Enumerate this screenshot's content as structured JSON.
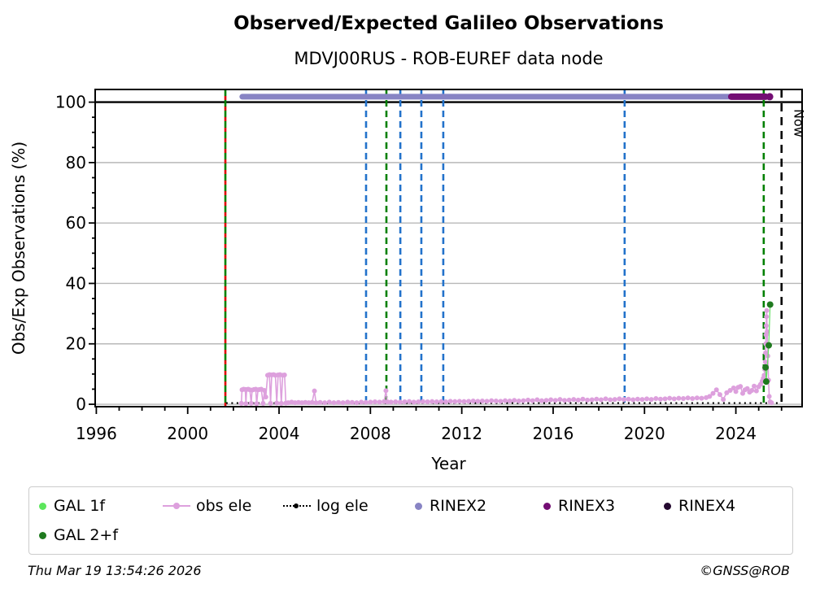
{
  "footer": {
    "timestamp": "Thu Mar 19 13:54:26 2026",
    "copyright": "©GNSS@ROB"
  },
  "chart_data": {
    "type": "line",
    "title": "Observed/Expected Galileo Observations",
    "subtitle": "MDVJ00RUS - ROB-EUREF data node",
    "xlabel": "Year",
    "ylabel": "Obs/Exp Observations (%)",
    "xlim": [
      1995.95,
      2026.9
    ],
    "ylim": [
      -0.8,
      104.2
    ],
    "xticks": {
      "major": [
        1996,
        2000,
        2004,
        2008,
        2012,
        2016,
        2020,
        2024
      ],
      "minor_step": 1
    },
    "yticks": {
      "major": [
        0,
        20,
        40,
        60,
        80,
        100
      ],
      "minor_step": 5
    },
    "grid": {
      "gray_levels": [
        0,
        20,
        40,
        60,
        80
      ],
      "black_levels": [
        100
      ],
      "gray_color": "#b8b8b8"
    },
    "now_line": {
      "year": 2026.0,
      "label": "Now",
      "color": "#000000"
    },
    "event_lines": [
      {
        "year": 2001.65,
        "color": "#008000",
        "overlay_color": "#dd0000"
      },
      {
        "year": 2007.81,
        "color": "#2272cb"
      },
      {
        "year": 2008.7,
        "color": "#008000"
      },
      {
        "year": 2009.31,
        "color": "#2272cb"
      },
      {
        "year": 2010.23,
        "color": "#2272cb"
      },
      {
        "year": 2011.19,
        "color": "#2272cb"
      },
      {
        "year": 2019.13,
        "color": "#2272cb"
      },
      {
        "year": 2025.22,
        "color": "#008000"
      }
    ],
    "rinex_bar_y": 101.8,
    "rinex_bars": [
      {
        "name": "RINEX2",
        "color": "#8884c4",
        "from": 2002.39,
        "to": 2023.8,
        "width": 7
      },
      {
        "name": "RINEX3",
        "color": "#730d73",
        "from": 2023.8,
        "to": 2025.3,
        "width": 8,
        "dot": 2025.48
      }
    ],
    "log_ele": {
      "name": "log ele",
      "color": "#000000",
      "y": 0.4,
      "from": 2001.68,
      "to": 2025.97
    },
    "obs_ele": {
      "name": "obs ele",
      "color": "#dda0dd",
      "points": [
        [
          2002.35,
          0.3
        ],
        [
          2002.38,
          4.8
        ],
        [
          2002.45,
          5.0
        ],
        [
          2002.52,
          4.9
        ],
        [
          2002.55,
          0.2
        ],
        [
          2002.58,
          4.9
        ],
        [
          2002.65,
          5.0
        ],
        [
          2002.72,
          4.8
        ],
        [
          2002.78,
          0.3
        ],
        [
          2002.82,
          4.7
        ],
        [
          2002.9,
          4.9
        ],
        [
          2002.98,
          5.0
        ],
        [
          2003.02,
          0.2
        ],
        [
          2003.08,
          4.8
        ],
        [
          2003.15,
          4.9
        ],
        [
          2003.22,
          5.0
        ],
        [
          2003.3,
          0.3
        ],
        [
          2003.36,
          4.6
        ],
        [
          2003.42,
          2.4
        ],
        [
          2003.5,
          9.6
        ],
        [
          2003.58,
          9.8
        ],
        [
          2003.63,
          0.3
        ],
        [
          2003.68,
          9.7
        ],
        [
          2003.76,
          9.8
        ],
        [
          2003.84,
          9.6
        ],
        [
          2003.9,
          0.4
        ],
        [
          2003.96,
          9.7
        ],
        [
          2004.04,
          9.8
        ],
        [
          2004.1,
          0.3
        ],
        [
          2004.16,
          9.6
        ],
        [
          2004.24,
          9.7
        ],
        [
          2004.3,
          0.4
        ],
        [
          2004.4,
          0.5
        ],
        [
          2004.55,
          0.7
        ],
        [
          2004.7,
          0.5
        ],
        [
          2004.85,
          0.6
        ],
        [
          2005.0,
          0.5
        ],
        [
          2005.15,
          0.6
        ],
        [
          2005.3,
          0.5
        ],
        [
          2005.45,
          0.6
        ],
        [
          2005.55,
          4.4
        ],
        [
          2005.62,
          0.5
        ],
        [
          2005.8,
          0.6
        ],
        [
          2006.0,
          0.5
        ],
        [
          2006.2,
          0.7
        ],
        [
          2006.4,
          0.5
        ],
        [
          2006.6,
          0.6
        ],
        [
          2006.8,
          0.5
        ],
        [
          2007.0,
          0.7
        ],
        [
          2007.2,
          0.6
        ],
        [
          2007.4,
          0.5
        ],
        [
          2007.6,
          0.7
        ],
        [
          2007.8,
          0.6
        ],
        [
          2008.0,
          0.7
        ],
        [
          2008.2,
          0.8
        ],
        [
          2008.4,
          0.7
        ],
        [
          2008.6,
          0.9
        ],
        [
          2008.68,
          4.5
        ],
        [
          2008.74,
          0.8
        ],
        [
          2008.9,
          0.7
        ],
        [
          2009.1,
          0.8
        ],
        [
          2009.3,
          0.7
        ],
        [
          2009.5,
          0.8
        ],
        [
          2009.7,
          0.9
        ],
        [
          2009.9,
          0.7
        ],
        [
          2010.1,
          0.8
        ],
        [
          2010.3,
          0.9
        ],
        [
          2010.5,
          0.8
        ],
        [
          2010.7,
          0.9
        ],
        [
          2010.9,
          0.8
        ],
        [
          2011.1,
          0.9
        ],
        [
          2011.3,
          0.8
        ],
        [
          2011.5,
          1.0
        ],
        [
          2011.7,
          0.9
        ],
        [
          2011.9,
          1.0
        ],
        [
          2012.1,
          0.9
        ],
        [
          2012.3,
          1.0
        ],
        [
          2012.5,
          1.1
        ],
        [
          2012.7,
          1.0
        ],
        [
          2012.9,
          1.1
        ],
        [
          2013.1,
          1.0
        ],
        [
          2013.3,
          1.2
        ],
        [
          2013.5,
          1.1
        ],
        [
          2013.7,
          1.0
        ],
        [
          2013.9,
          1.2
        ],
        [
          2014.1,
          1.1
        ],
        [
          2014.3,
          1.3
        ],
        [
          2014.5,
          1.1
        ],
        [
          2014.7,
          1.2
        ],
        [
          2014.9,
          1.4
        ],
        [
          2015.1,
          1.2
        ],
        [
          2015.3,
          1.5
        ],
        [
          2015.5,
          1.2
        ],
        [
          2015.7,
          1.3
        ],
        [
          2015.9,
          1.5
        ],
        [
          2016.1,
          1.3
        ],
        [
          2016.3,
          1.6
        ],
        [
          2016.5,
          1.3
        ],
        [
          2016.7,
          1.4
        ],
        [
          2016.9,
          1.6
        ],
        [
          2017.1,
          1.4
        ],
        [
          2017.3,
          1.7
        ],
        [
          2017.5,
          1.4
        ],
        [
          2017.7,
          1.5
        ],
        [
          2017.9,
          1.7
        ],
        [
          2018.1,
          1.5
        ],
        [
          2018.3,
          1.8
        ],
        [
          2018.5,
          1.5
        ],
        [
          2018.7,
          1.6
        ],
        [
          2018.9,
          1.8
        ],
        [
          2019.1,
          1.6
        ],
        [
          2019.3,
          1.7
        ],
        [
          2019.5,
          1.5
        ],
        [
          2019.7,
          1.7
        ],
        [
          2019.9,
          1.6
        ],
        [
          2020.1,
          1.8
        ],
        [
          2020.3,
          1.6
        ],
        [
          2020.5,
          1.9
        ],
        [
          2020.7,
          1.7
        ],
        [
          2020.9,
          1.8
        ],
        [
          2021.1,
          2.0
        ],
        [
          2021.3,
          1.8
        ],
        [
          2021.5,
          2.0
        ],
        [
          2021.7,
          1.9
        ],
        [
          2021.9,
          2.1
        ],
        [
          2022.1,
          1.9
        ],
        [
          2022.3,
          2.1
        ],
        [
          2022.5,
          2.0
        ],
        [
          2022.7,
          2.2
        ],
        [
          2022.85,
          2.6
        ],
        [
          2023.0,
          3.6
        ],
        [
          2023.15,
          4.8
        ],
        [
          2023.3,
          3.2
        ],
        [
          2023.45,
          1.6
        ],
        [
          2023.6,
          3.8
        ],
        [
          2023.75,
          4.6
        ],
        [
          2023.9,
          5.4
        ],
        [
          2024.0,
          4.2
        ],
        [
          2024.1,
          5.6
        ],
        [
          2024.2,
          5.9
        ],
        [
          2024.3,
          3.6
        ],
        [
          2024.4,
          4.8
        ],
        [
          2024.5,
          5.2
        ],
        [
          2024.6,
          4.0
        ],
        [
          2024.7,
          4.6
        ],
        [
          2024.8,
          6.0
        ],
        [
          2024.9,
          4.4
        ],
        [
          2025.0,
          5.8
        ],
        [
          2025.08,
          6.6
        ],
        [
          2025.15,
          7.6
        ],
        [
          2025.2,
          8.6
        ],
        [
          2025.24,
          9.6
        ],
        [
          2025.27,
          11.5
        ],
        [
          2025.29,
          14.0
        ],
        [
          2025.3,
          17.0
        ],
        [
          2025.31,
          20.0
        ],
        [
          2025.32,
          23.0
        ],
        [
          2025.33,
          26.0
        ],
        [
          2025.34,
          29.0
        ],
        [
          2025.35,
          31.0
        ],
        [
          2025.37,
          24.0
        ],
        [
          2025.4,
          16.0
        ],
        [
          2025.43,
          8.0
        ],
        [
          2025.46,
          2.6
        ],
        [
          2025.5,
          0.8
        ],
        [
          2025.56,
          0.5
        ]
      ]
    },
    "gal_1f_line": {
      "name": "GAL 1f",
      "color": "#66e066",
      "points": [
        [
          2025.3,
          12.2
        ],
        [
          2025.33,
          7.5
        ],
        [
          2025.44,
          19.5
        ],
        [
          2025.5,
          33.0
        ]
      ]
    },
    "gal_2f_dots": {
      "name": "GAL 2+f",
      "color": "#1f7a1f",
      "points": [
        [
          2025.3,
          12.2
        ],
        [
          2025.33,
          7.5
        ],
        [
          2025.44,
          19.5
        ],
        [
          2025.5,
          33.0
        ]
      ]
    },
    "legend": {
      "rows": [
        [
          {
            "label": "GAL 1f",
            "swatch": "dot",
            "color": "#5ce65c"
          },
          {
            "label": "obs ele",
            "swatch": "line-dot",
            "color": "#dda0dd"
          },
          {
            "label": "log ele",
            "swatch": "dotted-dot",
            "color": "#000000"
          },
          {
            "label": "RINEX2",
            "swatch": "dot",
            "color": "#8884c4"
          },
          {
            "label": "RINEX3",
            "swatch": "dot",
            "color": "#730d73"
          },
          {
            "label": "RINEX4",
            "swatch": "dot",
            "color": "#250a30"
          }
        ],
        [
          {
            "label": "GAL 2+f",
            "swatch": "dot",
            "color": "#1f7a1f"
          }
        ]
      ]
    }
  }
}
